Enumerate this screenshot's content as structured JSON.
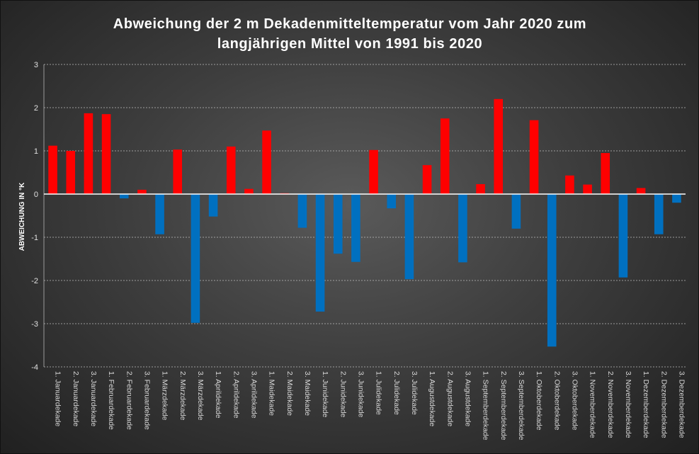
{
  "chart_data": {
    "type": "bar",
    "title_lines": [
      "Abweichung der 2 m Dekadenmitteltemperatur vom Jahr 2020 zum",
      "langjährigen Mittel von 1991 bis 2020"
    ],
    "xlabel": "",
    "ylabel": "ABWEICHUNG IN °K",
    "ylim": [
      -4,
      3
    ],
    "yticks": [
      3,
      2,
      1,
      0,
      -1,
      -2,
      -3,
      -4
    ],
    "grid": true,
    "legend": "none",
    "colors": {
      "positive": "#ff0000",
      "negative": "#0070c0",
      "zero_line": "#ffffff",
      "grid": "#bdbdbd"
    },
    "categories": [
      "1. Januardekade",
      "2. Januardekade",
      "3. Januardekade",
      "1. Februardekade",
      "2. Februardekade",
      "3. Februardekade",
      "1. Märzdekade",
      "2. Märzdekade",
      "3. Märzdekade",
      "1. Aprildekade",
      "2. Aprildekade",
      "3. Aprildekade",
      "1. Maidekade",
      "2. Maidekade",
      "3. Maidekade",
      "1. Junidekade",
      "2. Junidekade",
      "3. Junidekade",
      "1. Julidekade",
      "2. Julidekade",
      "3. Julidekade",
      "1. Augustdekade",
      "2. Augustdekade",
      "3. Augustdekade",
      "1. Septemberdekade",
      "2. Septemberdekade",
      "3. Septemberdekade",
      "1. Oktoberdekade",
      "2. Oktoberdekade",
      "3. Oktoberdekade",
      "1. Novemberdekade",
      "2. Novemberdekade",
      "3. Novemberdekade",
      "1. Dezemberdekade",
      "2. Dezemberdekade",
      "3. Dezemberdekade"
    ],
    "values": [
      1.12,
      1.0,
      1.87,
      1.85,
      -0.1,
      0.1,
      -0.93,
      1.03,
      -2.98,
      -0.52,
      1.1,
      0.12,
      1.47,
      0.02,
      -0.78,
      -2.72,
      -1.38,
      -1.57,
      1.02,
      -0.33,
      -1.97,
      0.67,
      1.75,
      -1.58,
      0.23,
      2.2,
      -0.8,
      1.71,
      -3.53,
      0.43,
      0.22,
      0.95,
      -1.93,
      0.14,
      -0.93,
      -0.2
    ]
  }
}
